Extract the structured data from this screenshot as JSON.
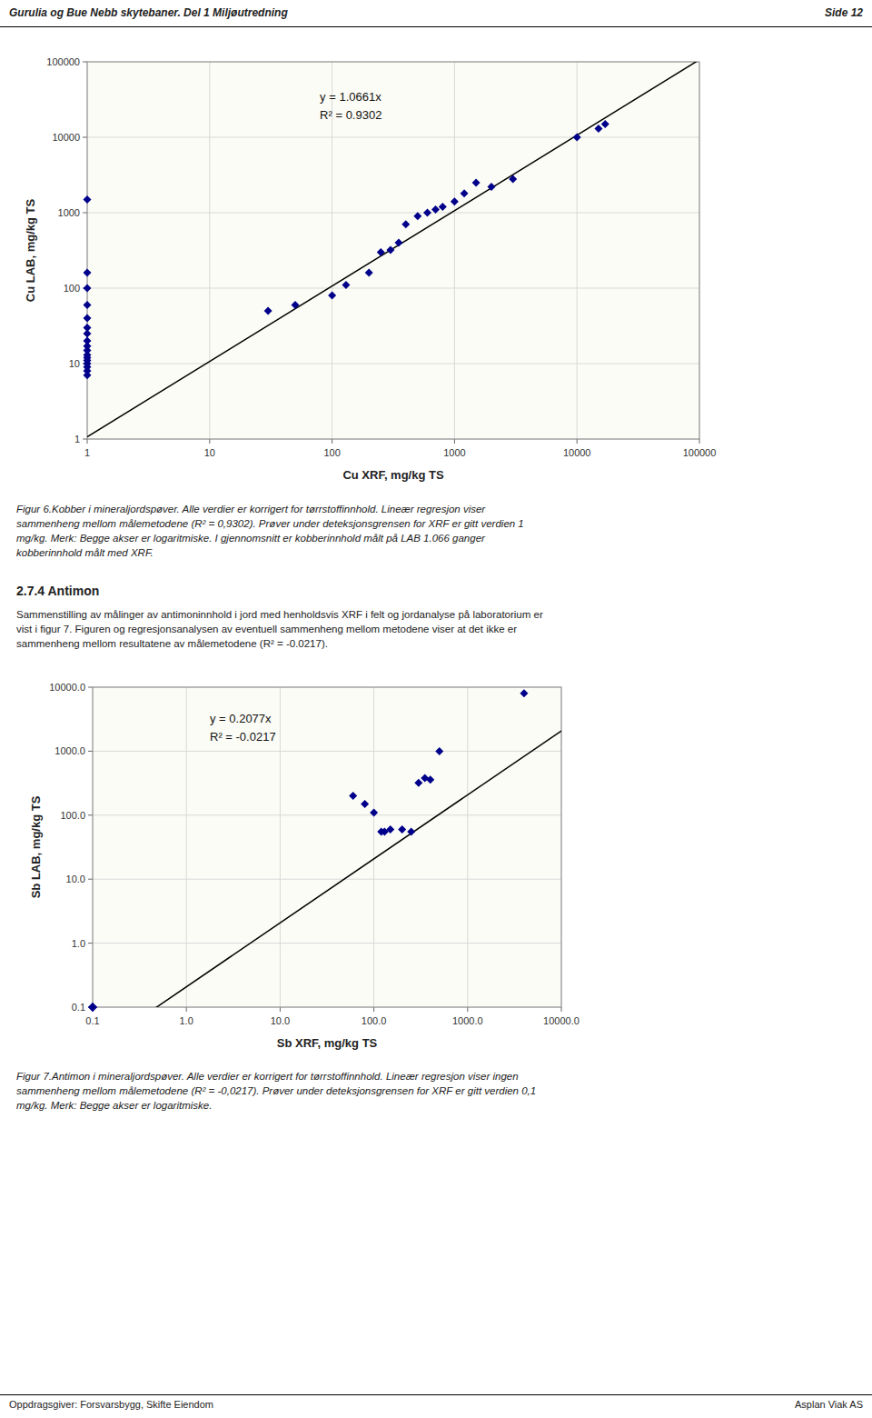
{
  "header_left": "Gurulia og Bue Nebb skytebaner. Del 1 Miljøutredning",
  "header_right": "Side 12",
  "footer_left": "Oppdragsgiver: Forsvarsbygg, Skifte Eiendom",
  "footer_right": "Asplan Viak AS",
  "section_header": "2.7.4   Antimon",
  "section_body": "Sammenstilling av målinger av antimoninnhold i jord med henholdsvis XRF i felt og jordanalyse på laboratorium er\nvist i figur 7. Figuren og regresjonsanalysen av eventuell sammenheng mellom metodene viser at det ikke er\nsammenheng mellom resultatene av målemetodene (R² = -0.0217).",
  "chart_data": [
    {
      "type": "scatter",
      "xlabel": "Cu XRF, mg/kg TS",
      "ylabel": "Cu LAB, mg/kg TS",
      "annotations": [
        "y = 1.0661x",
        "R² = 0.9302"
      ],
      "caption": "Figur 6.Kobber i mineraljordspøver. Alle verdier er korrigert for tørrstoffinnhold. Lineær regresjon viser\nsammenheng mellom målemetodene (R² = 0,9302). Prøver under deteksjonsgrensen for XRF er gitt verdien 1\nmg/kg. Merk: Begge akser er logaritmiske. I gjennomsnitt er kobberinnhold målt på LAB 1.066 ganger\nkobberinnhold målt med XRF.",
      "x": [
        1,
        1,
        1,
        1,
        1,
        1,
        1,
        1,
        1,
        1,
        1,
        1,
        1,
        1,
        1,
        1,
        1,
        30,
        50,
        100,
        130,
        200,
        250,
        300,
        350,
        400,
        500,
        600,
        700,
        800,
        1000,
        1200,
        1500,
        2000,
        3000,
        10000,
        15000,
        17000
      ],
      "values": [
        7,
        8,
        9,
        10,
        11,
        12,
        13,
        15,
        17,
        20,
        25,
        30,
        40,
        60,
        100,
        160,
        1500,
        50,
        60,
        80,
        110,
        160,
        300,
        320,
        400,
        700,
        900,
        1000,
        1100,
        1200,
        1400,
        1800,
        2500,
        2200,
        2800,
        10000,
        13000,
        15000
      ],
      "slope": 1.0661,
      "color": "#00008B",
      "marker": "diamond",
      "log": true,
      "grid": true,
      "xlim": [
        1,
        100000
      ],
      "ylim": [
        1,
        100000
      ],
      "xticks": [
        1,
        10,
        100,
        1000,
        10000,
        100000
      ],
      "yticks": [
        1,
        10,
        100,
        1000,
        10000,
        100000
      ]
    },
    {
      "type": "scatter",
      "xlabel": "Sb XRF, mg/kg TS",
      "ylabel": "Sb LAB, mg/kg TS",
      "annotations": [
        "y = 0.2077x",
        "R² = -0.0217"
      ],
      "caption": "Figur 7.Antimon i mineraljordspøver. Alle verdier er korrigert for tørrstoffinnhold. Lineær regresjon viser ingen\nsammenheng mellom målemetodene (R² = -0,0217). Prøver under deteksjonsgrensen for XRF er gitt verdien 0,1\nmg/kg. Merk: Begge akser er logaritmiske.",
      "x": [
        0.1,
        0.1,
        0.1,
        0.1,
        0.1,
        0.1,
        0.1,
        0.1,
        0.1,
        0.1,
        60,
        80,
        100,
        120,
        130,
        150,
        200,
        250,
        300,
        350,
        400,
        500,
        4000
      ],
      "values": [
        0.1,
        0.1,
        0.1,
        0.1,
        0.1,
        0.1,
        0.1,
        0.1,
        0.1,
        0.1,
        200,
        150,
        110,
        55,
        55,
        60,
        60,
        55,
        320,
        380,
        360,
        1000,
        8000
      ],
      "slope": 0.2077,
      "color": "#00008B",
      "marker": "diamond",
      "log": true,
      "grid": true,
      "xlim": [
        0.1,
        10000
      ],
      "ylim": [
        0.1,
        10000
      ],
      "xticks": [
        0.1,
        {
          "value": 1,
          "label": "1.0"
        },
        {
          "value": 10,
          "label": "10.0"
        },
        {
          "value": 100,
          "label": "100.0"
        },
        {
          "value": 1000,
          "label": "1000.0"
        },
        {
          "value": 10000,
          "label": "10000.0"
        }
      ],
      "yticks": [
        0.1,
        {
          "value": 1,
          "label": "1.0"
        },
        {
          "value": 10,
          "label": "10.0"
        },
        {
          "value": 100,
          "label": "100.0"
        },
        {
          "value": 1000,
          "label": "1000.0"
        },
        {
          "value": 10000,
          "label": "10000.0"
        }
      ]
    }
  ]
}
